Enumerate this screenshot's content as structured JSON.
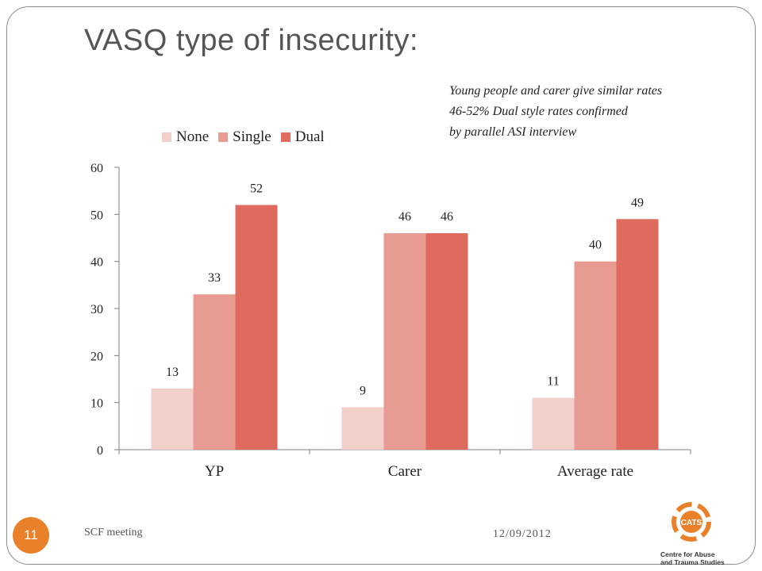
{
  "slide": {
    "title": "VASQ type of insecurity:",
    "note_lines": [
      "Young people and carer give  similar rates",
      "46-52% Dual style rates confirmed",
      "by parallel ASI interview"
    ],
    "footer_left": "SCF meeting",
    "footer_date": "12/09/2012",
    "page_number": "11",
    "logo": {
      "name": "cats-logo-icon",
      "text_short": "CATS",
      "text_line1": "Centre for Abuse",
      "text_line2": "and Trauma Studies"
    }
  },
  "colors": {
    "none": "#f2cfc9",
    "single": "#e89b91",
    "dual": "#df6b5e",
    "axis": "#7f7f7f",
    "badge": "#e8812a"
  },
  "chart_data": {
    "type": "bar",
    "categories": [
      "YP",
      "Carer",
      "Average rate"
    ],
    "series": [
      {
        "name": "None",
        "values": [
          13,
          9,
          11
        ]
      },
      {
        "name": "Single",
        "values": [
          33,
          46,
          40
        ]
      },
      {
        "name": "Dual",
        "values": [
          52,
          46,
          49
        ]
      }
    ],
    "ylim": [
      0,
      60
    ],
    "yticks": [
      0,
      10,
      20,
      30,
      40,
      50,
      60
    ],
    "grid": false,
    "legend": "top-left",
    "data_labels": true
  }
}
